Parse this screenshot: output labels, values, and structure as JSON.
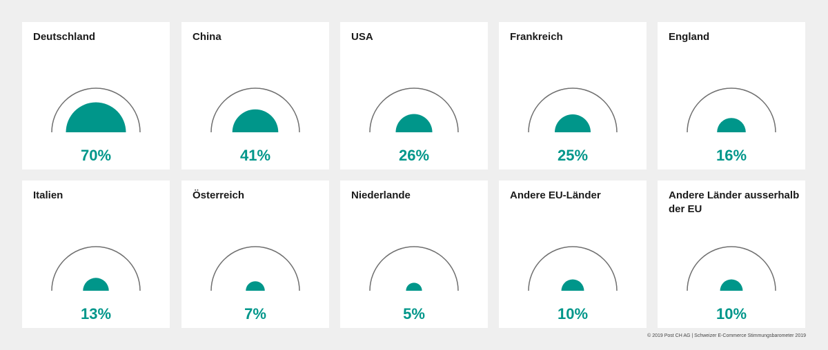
{
  "colors": {
    "accent": "#00968a",
    "arc": "#6f6f6f",
    "card": "#ffffff",
    "background": "#efefef"
  },
  "chart_data": {
    "type": "gauge",
    "max": 100,
    "items": [
      {
        "label": "Deutschland",
        "value": 70,
        "display": "70%"
      },
      {
        "label": "China",
        "value": 41,
        "display": "41%"
      },
      {
        "label": "USA",
        "value": 26,
        "display": "26%"
      },
      {
        "label": "Frankreich",
        "value": 25,
        "display": "25%"
      },
      {
        "label": "England",
        "value": 16,
        "display": "16%"
      },
      {
        "label": "Italien",
        "value": 13,
        "display": "13%"
      },
      {
        "label": "Österreich",
        "value": 7,
        "display": "7%"
      },
      {
        "label": "Niederlande",
        "value": 5,
        "display": "5%"
      },
      {
        "label": "Andere EU-Länder",
        "value": 10,
        "display": "10%"
      },
      {
        "label": "Andere Länder ausserhalb der EU",
        "value": 10,
        "display": "10%"
      }
    ]
  },
  "footer": "© 2019 Post CH AG | Schweizer E-Commerce Stimmungsbarometer 2019"
}
